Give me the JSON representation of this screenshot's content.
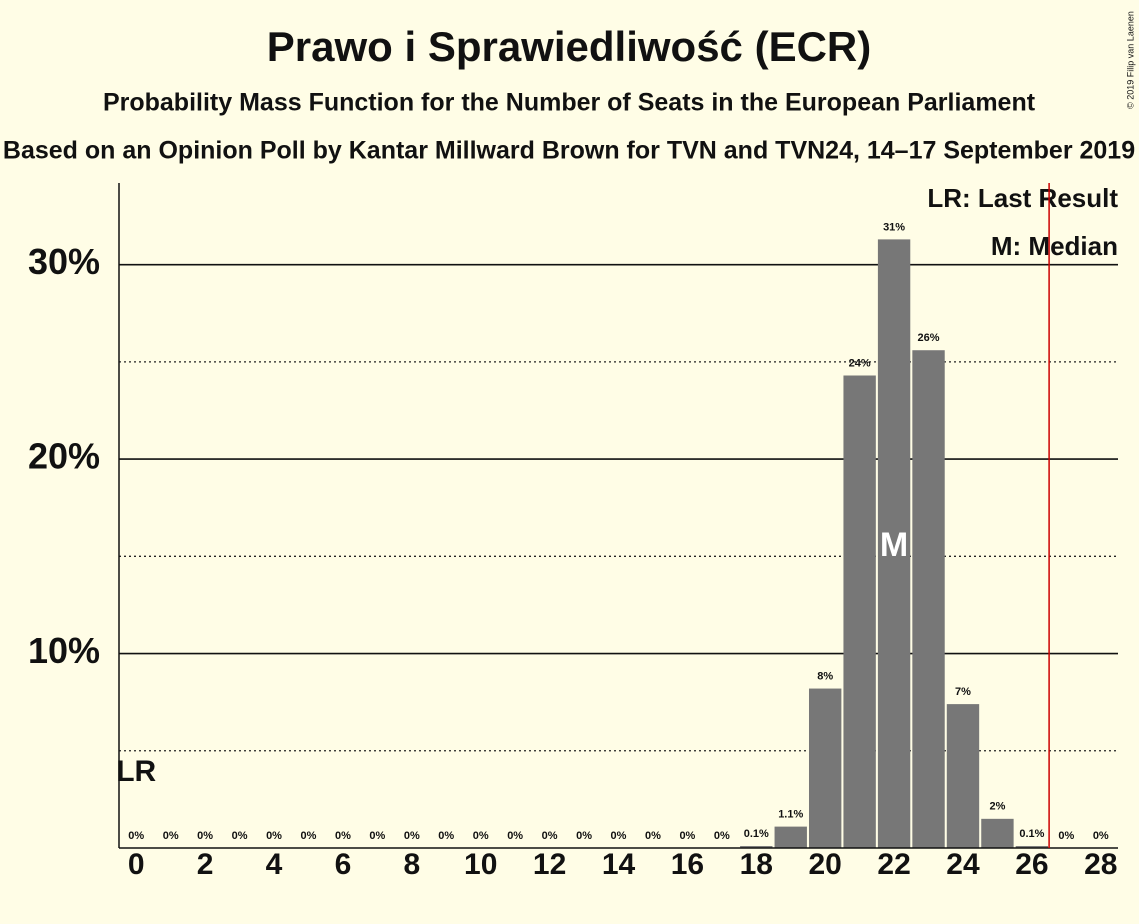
{
  "chart_data": {
    "type": "bar",
    "title": "Prawo i Sprawiedliwość (ECR)",
    "subtitle": "Probability Mass Function for the Number of Seats in the European Parliament",
    "subtitle2": "Based on an Opinion Poll by Kantar Millward Brown for TVN and TVN24, 14–17 September 2019",
    "copyright": "© 2019 Filip van Laenen",
    "x": [
      0,
      1,
      2,
      3,
      4,
      5,
      6,
      7,
      8,
      9,
      10,
      11,
      12,
      13,
      14,
      15,
      16,
      17,
      18,
      19,
      20,
      21,
      22,
      23,
      24,
      25,
      26,
      27,
      28
    ],
    "values": [
      0,
      0,
      0,
      0,
      0,
      0,
      0,
      0,
      0,
      0,
      0,
      0,
      0,
      0,
      0,
      0,
      0,
      0,
      0.1,
      1.1,
      8.2,
      24.3,
      31.3,
      25.6,
      7.4,
      1.5,
      0.1,
      0,
      0
    ],
    "value_labels": [
      "0%",
      "0%",
      "0%",
      "0%",
      "0%",
      "0%",
      "0%",
      "0%",
      "0%",
      "0%",
      "0%",
      "0%",
      "0%",
      "0%",
      "0%",
      "0%",
      "0%",
      "0%",
      "0.1%",
      "1.1%",
      "8%",
      "24%",
      "31%",
      "26%",
      "7%",
      "2%",
      "0.1%",
      "0%",
      "0%"
    ],
    "color": "#777777",
    "xlim": [
      -0.5,
      28.5
    ],
    "xticks": [
      0,
      2,
      4,
      6,
      8,
      10,
      12,
      14,
      16,
      18,
      20,
      22,
      24,
      26,
      28
    ],
    "ylim": [
      0,
      34.2
    ],
    "yticks": [
      {
        "value": 10,
        "label": "10%"
      },
      {
        "value": 20,
        "label": "20%"
      },
      {
        "value": 30,
        "label": "30%"
      }
    ],
    "minor_yticks": [
      5,
      15,
      25
    ],
    "last_result_line": {
      "x": 26.5,
      "color": "#cc0000"
    },
    "annotations": [
      {
        "text": "LR",
        "x": 0
      },
      {
        "text": "M",
        "x": 22
      }
    ],
    "legend": [
      "LR: Last Result",
      "M: Median"
    ]
  }
}
